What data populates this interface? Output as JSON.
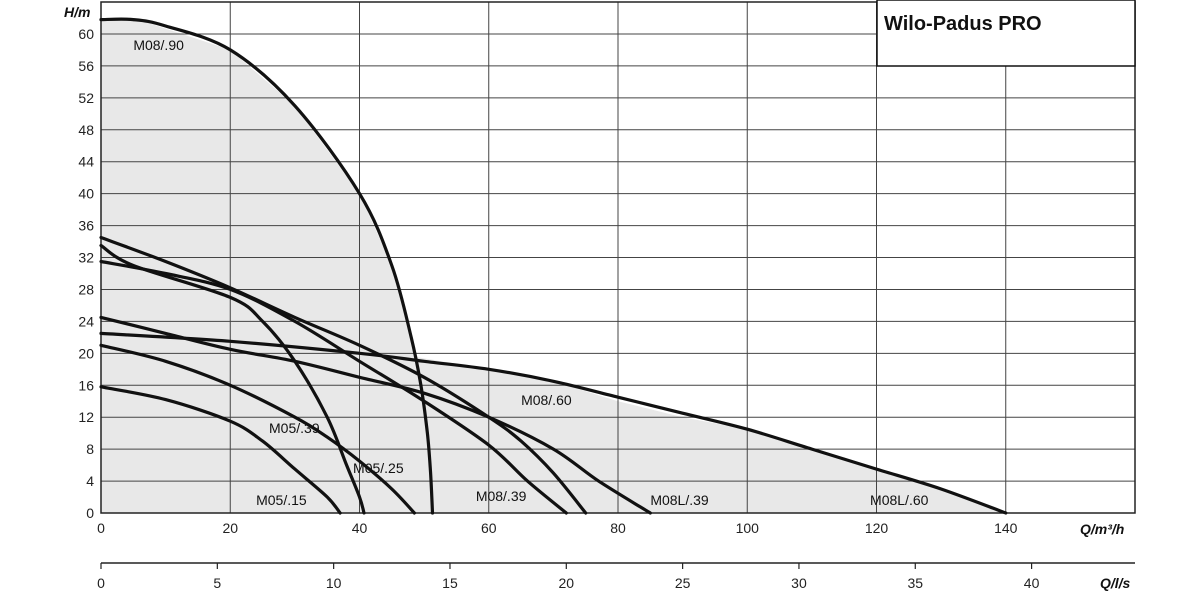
{
  "chart_data": {
    "type": "line",
    "title": "Wilo-Padus PRO",
    "xlabel": "Q/m³/h",
    "ylabel": "H/m",
    "secondary_xlabel": "Q/l/s",
    "xlim": [
      0,
      160
    ],
    "ylim": [
      0,
      64
    ],
    "x_ticks": [
      "0",
      "20",
      "40",
      "60",
      "80",
      "100",
      "120",
      "140"
    ],
    "y_ticks": [
      "0",
      "4",
      "8",
      "12",
      "16",
      "20",
      "24",
      "28",
      "32",
      "36",
      "40",
      "44",
      "48",
      "52",
      "56",
      "60"
    ],
    "secondary_x_ticks": [
      "0",
      "5",
      "10",
      "15",
      "20",
      "25",
      "30",
      "35",
      "40"
    ],
    "grid": true,
    "envelope": [
      [
        0,
        62
      ],
      [
        5,
        62
      ],
      [
        20,
        58
      ],
      [
        30,
        51
      ],
      [
        40,
        40
      ],
      [
        45,
        31
      ],
      [
        48,
        22
      ],
      [
        49,
        19.5
      ],
      [
        60,
        18
      ],
      [
        70,
        16.5
      ],
      [
        80,
        14
      ],
      [
        90,
        12
      ],
      [
        100,
        10.5
      ],
      [
        110,
        8
      ],
      [
        120,
        5.5
      ],
      [
        130,
        3
      ],
      [
        140,
        0
      ],
      [
        0,
        0
      ]
    ],
    "series": [
      {
        "name": "M08/.90",
        "points": [
          [
            0,
            61.8
          ],
          [
            5,
            61.8
          ],
          [
            10,
            61
          ],
          [
            20,
            58
          ],
          [
            30,
            51
          ],
          [
            40,
            40
          ],
          [
            45,
            31
          ],
          [
            48,
            22
          ],
          [
            49.5,
            16
          ],
          [
            50.5,
            10
          ],
          [
            51,
            5
          ],
          [
            51.3,
            0
          ]
        ]
      },
      {
        "name": "M08/.60",
        "points": [
          [
            0,
            34.5
          ],
          [
            10,
            31.5
          ],
          [
            20,
            28.2
          ],
          [
            30,
            24.5
          ],
          [
            40,
            21
          ],
          [
            50,
            17
          ],
          [
            60,
            12
          ],
          [
            65,
            9
          ],
          [
            70,
            5
          ],
          [
            75,
            0
          ]
        ]
      },
      {
        "name": "M08L/.60",
        "points": [
          [
            0,
            22.5
          ],
          [
            20,
            21.5
          ],
          [
            40,
            20
          ],
          [
            50,
            19
          ],
          [
            60,
            18
          ],
          [
            70,
            16.5
          ],
          [
            80,
            14.5
          ],
          [
            90,
            12.5
          ],
          [
            100,
            10.5
          ],
          [
            110,
            8
          ],
          [
            120,
            5.5
          ],
          [
            130,
            3
          ],
          [
            140,
            0
          ]
        ]
      },
      {
        "name": "M08L/.39",
        "points": [
          [
            0,
            24.5
          ],
          [
            10,
            22.5
          ],
          [
            20,
            20.5
          ],
          [
            30,
            19
          ],
          [
            40,
            17
          ],
          [
            50,
            15
          ],
          [
            60,
            12
          ],
          [
            70,
            8
          ],
          [
            77,
            4
          ],
          [
            85,
            0
          ]
        ]
      },
      {
        "name": "M08/.39",
        "points": [
          [
            0,
            31.5
          ],
          [
            10,
            30
          ],
          [
            20,
            28
          ],
          [
            30,
            24
          ],
          [
            40,
            19
          ],
          [
            50,
            14
          ],
          [
            60,
            8.5
          ],
          [
            66,
            4
          ],
          [
            72,
            0
          ]
        ]
      },
      {
        "name": "M05/.25",
        "points": [
          [
            0,
            21
          ],
          [
            10,
            19
          ],
          [
            20,
            16
          ],
          [
            30,
            12
          ],
          [
            35,
            9.5
          ],
          [
            40,
            6.5
          ],
          [
            45,
            3
          ],
          [
            48.5,
            0
          ]
        ]
      },
      {
        "name": "M05/.39",
        "points": [
          [
            0,
            33.5
          ],
          [
            5,
            31
          ],
          [
            20,
            27
          ],
          [
            25,
            24
          ],
          [
            30,
            19
          ],
          [
            35,
            12
          ],
          [
            38,
            6
          ],
          [
            40,
            2
          ],
          [
            40.7,
            0
          ]
        ]
      },
      {
        "name": "M05/.15",
        "points": [
          [
            0,
            15.8
          ],
          [
            10,
            14.2
          ],
          [
            20,
            11.5
          ],
          [
            25,
            9
          ],
          [
            30,
            5.5
          ],
          [
            35,
            2
          ],
          [
            37,
            0
          ]
        ]
      }
    ],
    "labels": [
      {
        "text": "M08/.90",
        "x": 5,
        "y": 58
      },
      {
        "text": "M08/.60",
        "x": 65,
        "y": 13.5
      },
      {
        "text": "M05/.39",
        "x": 26,
        "y": 10
      },
      {
        "text": "M05/.25",
        "x": 39,
        "y": 5
      },
      {
        "text": "M08/.39",
        "x": 58,
        "y": 1.5
      },
      {
        "text": "M08L/.39",
        "x": 85,
        "y": 1
      },
      {
        "text": "M08L/.60",
        "x": 119,
        "y": 1
      },
      {
        "text": "M05/.15",
        "x": 24,
        "y": 1
      }
    ]
  }
}
